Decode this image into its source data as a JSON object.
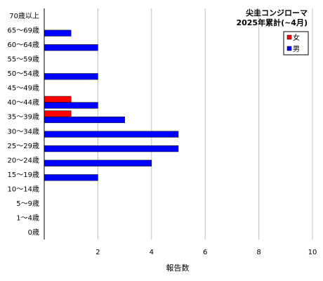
{
  "chart_data": {
    "type": "bar",
    "orientation": "horizontal",
    "title": "尖圭コンジローマ",
    "subtitle": "2025年累計(~4月)",
    "xlabel": "報告数",
    "ylabel": "",
    "xlim": [
      0,
      10
    ],
    "xticks": [
      2,
      4,
      6,
      8,
      10
    ],
    "grid": "vertical",
    "legend_position": "top-right",
    "categories": [
      "70歳以上",
      "65～69歳",
      "60～64歳",
      "55～59歳",
      "50～54歳",
      "45～49歳",
      "40～44歳",
      "35～39歳",
      "30～34歳",
      "25～29歳",
      "20～24歳",
      "15～19歳",
      "10～14歳",
      "5～9歳",
      "1～4歳",
      "0歳"
    ],
    "series": [
      {
        "name": "女",
        "color": "#ff0000",
        "values": [
          0,
          0,
          0,
          0,
          0,
          0,
          1,
          1,
          0,
          0,
          0,
          0,
          0,
          0,
          0,
          0
        ]
      },
      {
        "name": "男",
        "color": "#0000ff",
        "values": [
          0,
          1,
          2,
          0,
          2,
          0,
          2,
          3,
          5,
          5,
          4,
          2,
          0,
          0,
          0,
          0
        ]
      }
    ]
  }
}
